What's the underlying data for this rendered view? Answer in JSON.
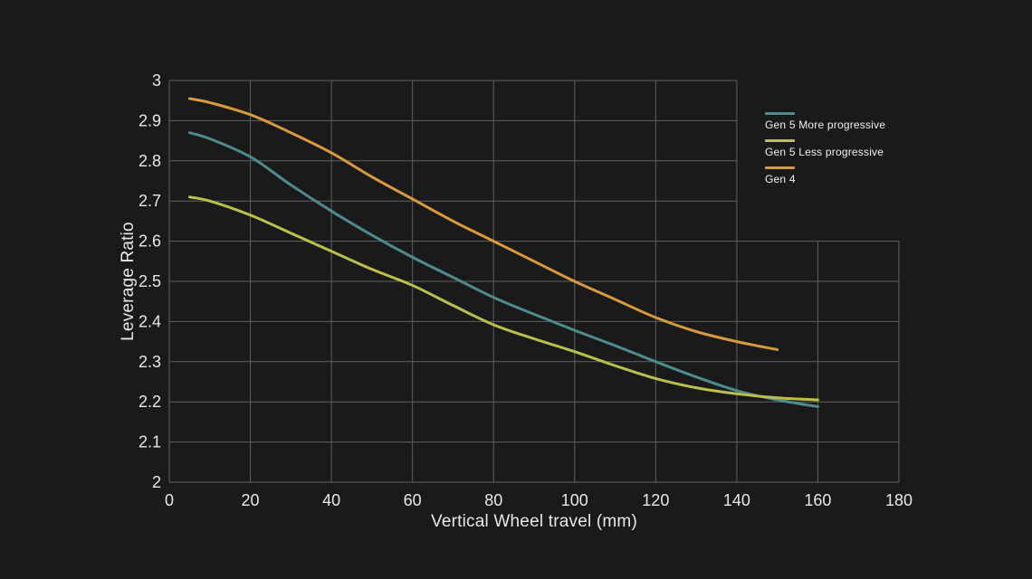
{
  "colors": {
    "background": "#1a1a1b",
    "grid": "#5f6164",
    "text": "#e8e8e8"
  },
  "chart_data": {
    "type": "line",
    "title": "",
    "xlabel": "Vertical Wheel travel (mm)",
    "ylabel": "Leverage Ratio",
    "xlim": [
      0,
      180
    ],
    "ylim": [
      2.0,
      3.0
    ],
    "grid": true,
    "legend_position": "top-right-inside-notch",
    "grid_notch": {
      "x_break": 140,
      "y_break": 2.6
    },
    "xticks": [
      0,
      20,
      40,
      60,
      80,
      100,
      120,
      140,
      160,
      180
    ],
    "xtick_labels": [
      "0",
      "20",
      "40",
      "60",
      "80",
      "100",
      "120",
      "140",
      "160",
      "180"
    ],
    "yticks": [
      3,
      2.9,
      2.8,
      2.7,
      2.6,
      2.5,
      2.4,
      2.3,
      2.2,
      2.1,
      2
    ],
    "ytick_labels": [
      "3",
      "2.9",
      "2.8",
      "2.7",
      "2.6",
      "2.5",
      "2.4",
      "2.3",
      "2.2",
      "2.1",
      "2"
    ],
    "series": [
      {
        "name": "Gen 5 More progressive",
        "color": "#4d8b8d",
        "x": [
          5,
          10,
          20,
          30,
          40,
          50,
          60,
          70,
          80,
          90,
          100,
          110,
          120,
          130,
          140,
          150,
          160
        ],
        "y": [
          2.87,
          2.855,
          2.81,
          2.74,
          2.675,
          2.615,
          2.56,
          2.51,
          2.46,
          2.418,
          2.378,
          2.34,
          2.3,
          2.262,
          2.228,
          2.205,
          2.188
        ]
      },
      {
        "name": "Gen 5 Less progressive",
        "color": "#bcbf4b",
        "x": [
          5,
          10,
          20,
          30,
          40,
          50,
          60,
          70,
          80,
          90,
          100,
          110,
          120,
          130,
          140,
          150,
          160
        ],
        "y": [
          2.71,
          2.7,
          2.665,
          2.62,
          2.575,
          2.53,
          2.49,
          2.44,
          2.392,
          2.357,
          2.325,
          2.29,
          2.258,
          2.235,
          2.22,
          2.21,
          2.205
        ]
      },
      {
        "name": "Gen 4",
        "color": "#d99a3d",
        "x": [
          5,
          10,
          20,
          30,
          40,
          50,
          60,
          70,
          80,
          90,
          100,
          110,
          120,
          130,
          140,
          150
        ],
        "y": [
          2.955,
          2.945,
          2.915,
          2.87,
          2.82,
          2.76,
          2.705,
          2.65,
          2.6,
          2.55,
          2.5,
          2.455,
          2.41,
          2.375,
          2.35,
          2.33
        ]
      }
    ]
  }
}
